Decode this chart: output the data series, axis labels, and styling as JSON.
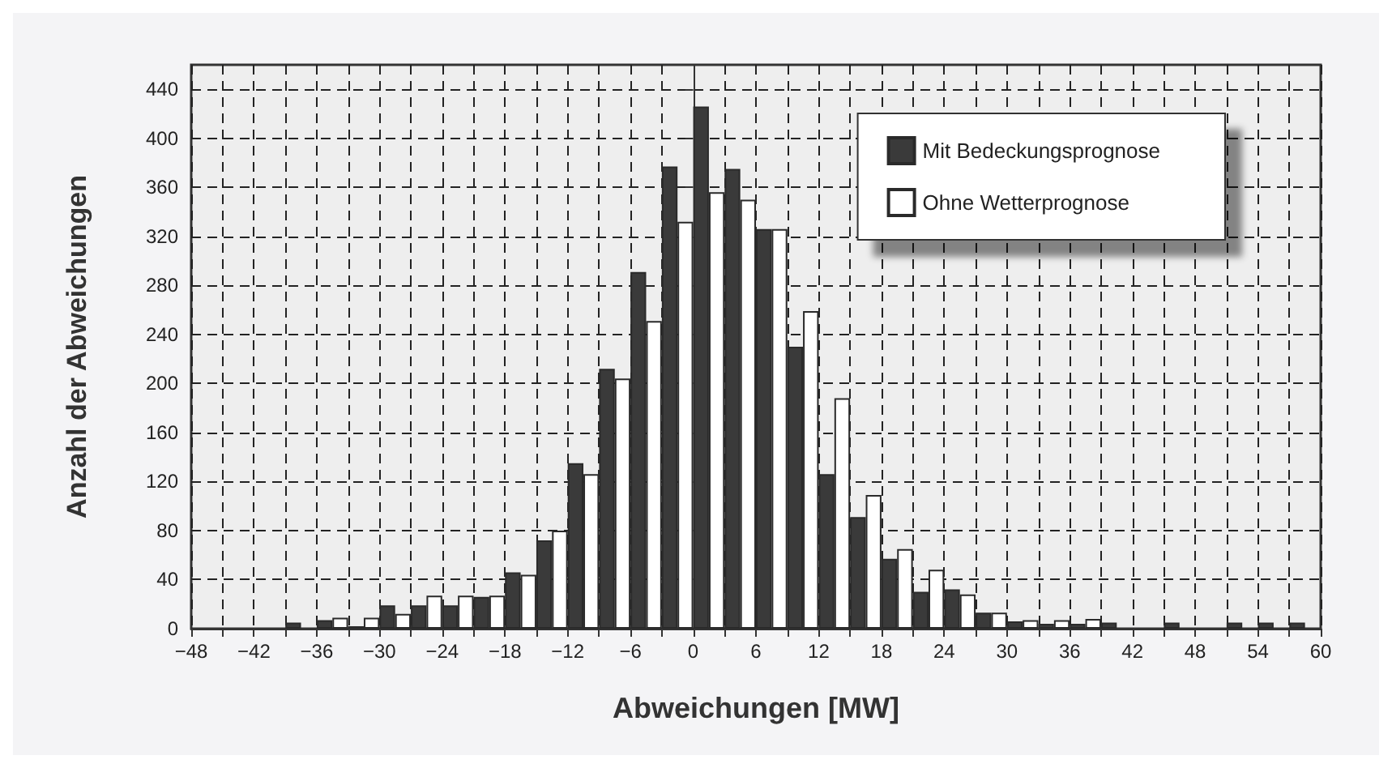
{
  "chart_data": {
    "type": "bar",
    "xlabel": "Abweichungen [MW]",
    "ylabel": "Anzahl der Abweichungen",
    "x": [
      -46.5,
      -43.5,
      -40.5,
      -37.5,
      -34.5,
      -31.5,
      -28.5,
      -25.5,
      -22.5,
      -19.5,
      -16.5,
      -13.5,
      -10.5,
      -7.5,
      -4.5,
      -1.5,
      1.5,
      4.5,
      7.5,
      10.5,
      13.5,
      16.5,
      19.5,
      22.5,
      25.5,
      28.5,
      31.5,
      34.5,
      37.5,
      40.5,
      43.5,
      46.5,
      49.5,
      52.5,
      55.5,
      58.5
    ],
    "series": [
      {
        "name": "Mit Bedeckungsprognose",
        "color": "#3a3a3a",
        "values": [
          0,
          0,
          0,
          5,
          7,
          2,
          19,
          19,
          19,
          26,
          46,
          72,
          135,
          212,
          291,
          377,
          426,
          375,
          326,
          230,
          126,
          91,
          57,
          30,
          32,
          13,
          6,
          4,
          4,
          5,
          0,
          5,
          0,
          5,
          5,
          5
        ]
      },
      {
        "name": "Ohne Wetterprognose",
        "color": "#ffffff",
        "values": [
          0,
          0,
          0,
          0,
          9,
          9,
          12,
          27,
          27,
          27,
          44,
          80,
          126,
          204,
          251,
          332,
          356,
          350,
          326,
          259,
          188,
          109,
          65,
          48,
          28,
          13,
          7,
          7,
          8,
          0,
          0,
          0,
          0,
          0,
          0,
          0
        ]
      }
    ],
    "xlim": [
      -48,
      60
    ],
    "xticks": [
      -48,
      {
        "value": -45,
        "label": null
      },
      -42,
      {
        "value": -39,
        "label": null
      },
      -36,
      {
        "value": -33,
        "label": null
      },
      -30,
      {
        "value": -27,
        "label": null
      },
      -24,
      {
        "value": -21,
        "label": null
      },
      -18,
      {
        "value": -15,
        "label": null
      },
      -12,
      {
        "value": -9,
        "label": null
      },
      -6,
      {
        "value": -3,
        "label": null
      },
      0,
      {
        "value": 3,
        "label": null
      },
      6,
      {
        "value": 9,
        "label": null
      },
      12,
      {
        "value": 15,
        "label": null
      },
      18,
      {
        "value": 21,
        "label": null
      },
      24,
      {
        "value": 27,
        "label": null
      },
      30,
      {
        "value": 33,
        "label": null
      },
      36,
      {
        "value": 39,
        "label": null
      },
      42,
      {
        "value": 45,
        "label": null
      },
      48,
      {
        "value": 51,
        "label": null
      },
      54,
      {
        "value": 57,
        "label": null
      },
      60
    ],
    "ylim": [
      0,
      460
    ],
    "yticks": [
      0,
      40,
      80,
      120,
      160,
      200,
      240,
      280,
      320,
      360,
      400,
      440
    ],
    "grid": true,
    "legend": "top right"
  }
}
